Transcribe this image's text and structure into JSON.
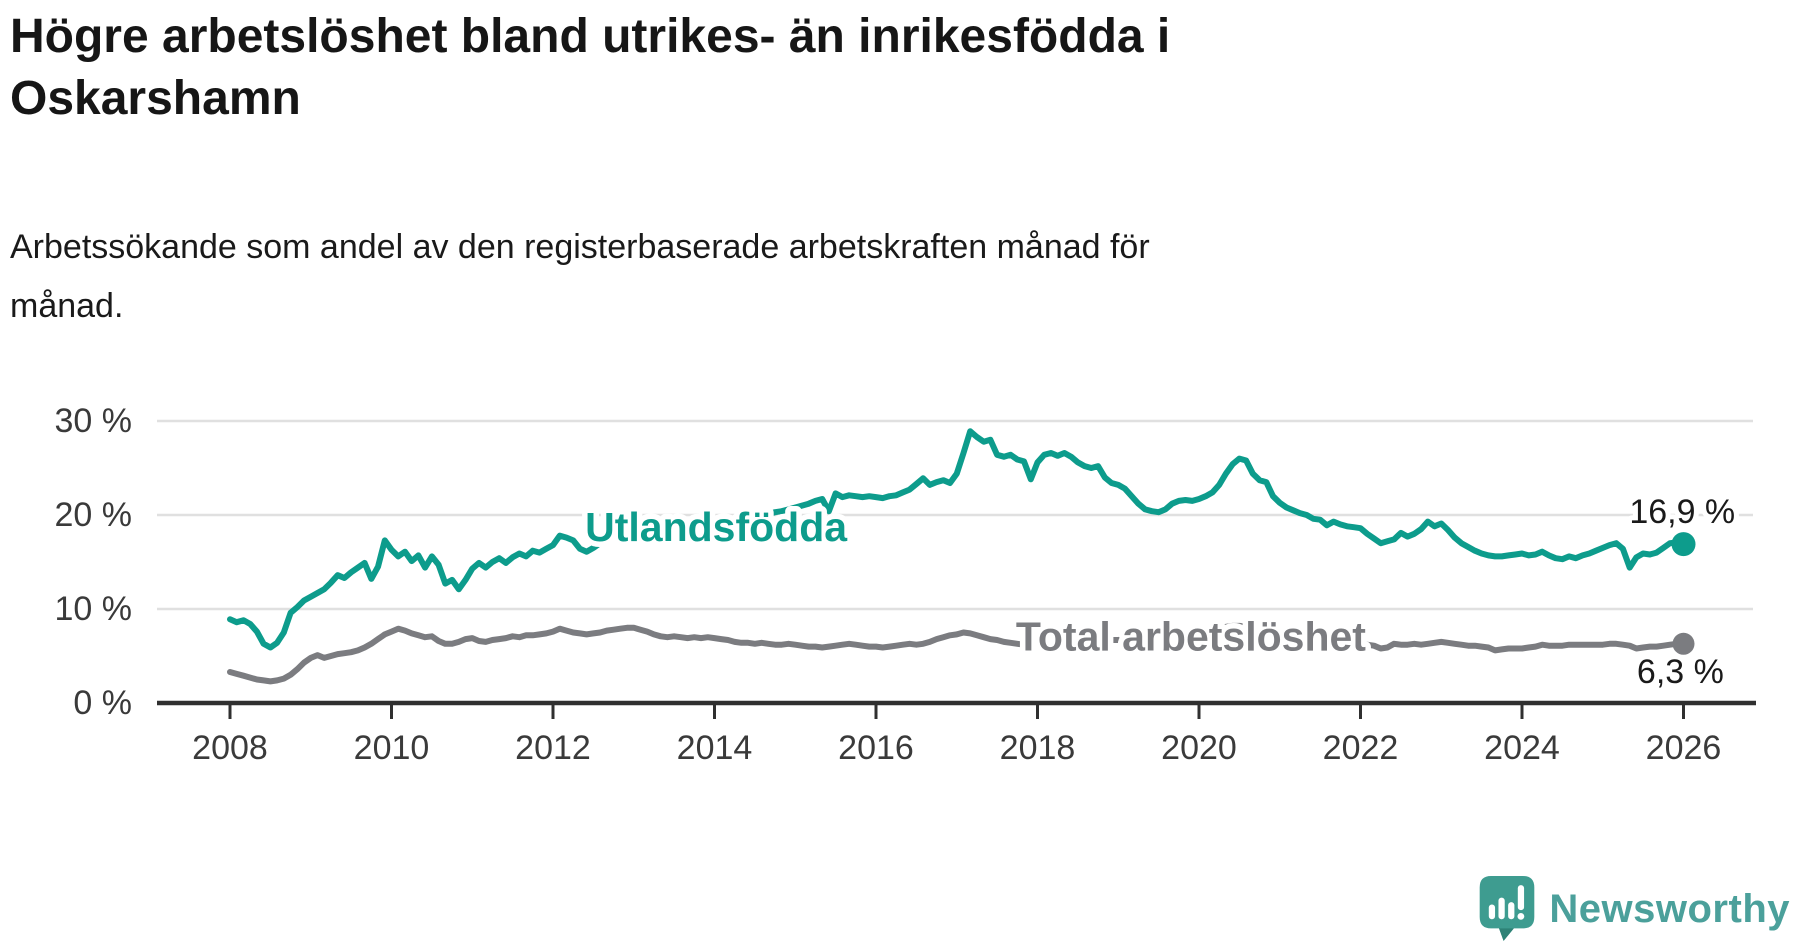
{
  "header": {
    "title_lines": [
      "Högre arbetslöshet bland utrikes- än inrikesfödda i",
      "Oskarshamn"
    ],
    "subtitle_lines": [
      "Arbetssökande som andel av den registerbaserade arbetskraften månad för",
      "månad."
    ]
  },
  "footer": {
    "brand": "Newsworthy",
    "brand_color": "#4ba09b",
    "logo_icon_color": "#3e9c90",
    "logo_icon_shadow": "#2e8276"
  },
  "chart_data": {
    "type": "line",
    "title": "Högre arbetslöshet bland utrikes- än inrikesfödda i Oskarshamn",
    "subtitle": "Arbetssökande som andel av den registerbaserade arbetskraften månad för månad.",
    "grid": "horizontal-only",
    "background": "#ffffff",
    "gridline_color": "#e0e0e0",
    "axis_color": "#303030",
    "axis_label_color": "#3a3a3a",
    "x_axis": {
      "start_year": 2008,
      "points_per_year": 12,
      "tick_years": [
        2008,
        2010,
        2012,
        2014,
        2016,
        2018,
        2020,
        2022,
        2024,
        2026
      ],
      "tick_labels": [
        "2008",
        "2010",
        "2012",
        "2014",
        "2016",
        "2018",
        "2020",
        "2022",
        "2024",
        "2026"
      ]
    },
    "y_axis": {
      "ticks": [
        0,
        10,
        20,
        30
      ],
      "tick_labels": [
        "0 %",
        "10 %",
        "20 %",
        "30 %"
      ],
      "range": [
        0,
        32
      ]
    },
    "series": [
      {
        "id": "utlandsfodda",
        "name": "Utlandsfödda",
        "color": "#0d9c8c",
        "label": {
          "text": "Utlandsfödda",
          "x_year": 2014.02,
          "y_pct": 18.7
        },
        "end_annotation": {
          "text": "16,9 %",
          "x_year": 2026.64,
          "y_pct": 20.3
        },
        "last_value": 16.9,
        "values": [
          8.9,
          8.6,
          8.8,
          8.4,
          7.6,
          6.3,
          5.9,
          6.4,
          7.5,
          9.6,
          10.2,
          10.9,
          11.3,
          11.7,
          12.1,
          12.8,
          13.6,
          13.3,
          13.9,
          14.4,
          14.9,
          13.2,
          14.5,
          17.3,
          16.3,
          15.6,
          16.1,
          15.1,
          15.7,
          14.4,
          15.6,
          14.7,
          12.7,
          13.1,
          12.1,
          13.1,
          14.3,
          14.9,
          14.4,
          15.0,
          15.4,
          14.9,
          15.5,
          15.9,
          15.6,
          16.2,
          16.0,
          16.4,
          16.8,
          17.8,
          17.6,
          17.3,
          16.4,
          16.1,
          16.5,
          17.0,
          17.3,
          17.6,
          17.8,
          18.0,
          17.9,
          18.1,
          18.3,
          18.4,
          18.5,
          18.4,
          18.6,
          18.8,
          18.7,
          18.9,
          19.0,
          19.2,
          19.1,
          19.3,
          19.4,
          19.5,
          19.7,
          19.6,
          19.8,
          20.0,
          20.1,
          20.3,
          20.4,
          20.6,
          20.8,
          21.0,
          21.2,
          21.5,
          21.7,
          20.4,
          22.3,
          21.9,
          22.1,
          22.0,
          21.9,
          22.0,
          21.9,
          21.8,
          22.0,
          22.1,
          22.4,
          22.7,
          23.3,
          23.9,
          23.2,
          23.5,
          23.7,
          23.4,
          24.4,
          26.6,
          28.9,
          28.3,
          27.8,
          28.0,
          26.4,
          26.2,
          26.4,
          25.9,
          25.7,
          23.8,
          25.6,
          26.4,
          26.6,
          26.3,
          26.6,
          26.2,
          25.6,
          25.2,
          25.0,
          25.2,
          24.0,
          23.4,
          23.2,
          22.8,
          22.0,
          21.2,
          20.6,
          20.4,
          20.3,
          20.6,
          21.2,
          21.5,
          21.6,
          21.5,
          21.7,
          22.0,
          22.4,
          23.2,
          24.4,
          25.4,
          26.0,
          25.8,
          24.4,
          23.7,
          23.5,
          22.0,
          21.3,
          20.8,
          20.5,
          20.2,
          20.0,
          19.6,
          19.5,
          18.9,
          19.3,
          19.0,
          18.8,
          18.7,
          18.6,
          18.0,
          17.5,
          17.0,
          17.2,
          17.4,
          18.1,
          17.7,
          18.0,
          18.5,
          19.3,
          18.8,
          19.1,
          18.4,
          17.6,
          17.0,
          16.6,
          16.2,
          15.9,
          15.7,
          15.6,
          15.6,
          15.7,
          15.8,
          15.9,
          15.7,
          15.8,
          16.1,
          15.7,
          15.4,
          15.3,
          15.6,
          15.4,
          15.7,
          15.9,
          16.2,
          16.5,
          16.8,
          17.0,
          16.4,
          14.4,
          15.5,
          15.9,
          15.8,
          16.0,
          16.5,
          17.0,
          17.1,
          16.9
        ]
      },
      {
        "id": "total",
        "name": "Total arbetslöshet",
        "color": "#7b7c80",
        "label": {
          "text": "Total arbetslöshet",
          "x_year": 2019.9,
          "y_pct": 7.1
        },
        "end_annotation": {
          "text": "6,3 %",
          "x_year": 2026.5,
          "y_pct": 3.3
        },
        "last_value": 6.3,
        "values": [
          3.3,
          3.1,
          2.9,
          2.7,
          2.5,
          2.4,
          2.3,
          2.4,
          2.6,
          3.0,
          3.6,
          4.3,
          4.8,
          5.1,
          4.8,
          5.0,
          5.2,
          5.3,
          5.4,
          5.6,
          5.9,
          6.3,
          6.8,
          7.3,
          7.6,
          7.9,
          7.7,
          7.4,
          7.2,
          7.0,
          7.1,
          6.6,
          6.3,
          6.3,
          6.5,
          6.8,
          6.9,
          6.6,
          6.5,
          6.7,
          6.8,
          6.9,
          7.1,
          7.0,
          7.2,
          7.2,
          7.3,
          7.4,
          7.6,
          7.9,
          7.7,
          7.5,
          7.4,
          7.3,
          7.4,
          7.5,
          7.7,
          7.8,
          7.9,
          8.0,
          8.0,
          7.8,
          7.6,
          7.3,
          7.1,
          7.0,
          7.1,
          7.0,
          6.9,
          7.0,
          6.9,
          7.0,
          6.9,
          6.8,
          6.7,
          6.5,
          6.4,
          6.4,
          6.3,
          6.4,
          6.3,
          6.2,
          6.2,
          6.3,
          6.2,
          6.1,
          6.0,
          6.0,
          5.9,
          6.0,
          6.1,
          6.2,
          6.3,
          6.2,
          6.1,
          6.0,
          6.0,
          5.9,
          6.0,
          6.1,
          6.2,
          6.3,
          6.2,
          6.3,
          6.5,
          6.8,
          7.0,
          7.2,
          7.3,
          7.5,
          7.4,
          7.2,
          7.0,
          6.8,
          6.7,
          6.5,
          6.4,
          6.3,
          6.2,
          6.3,
          6.3,
          6.4,
          6.3,
          6.2,
          6.3,
          6.4,
          6.5,
          6.4,
          6.5,
          6.6,
          6.6,
          6.7,
          6.7,
          6.8,
          6.8,
          6.9,
          6.9,
          7.0,
          7.0,
          7.1,
          7.1,
          7.2,
          7.2,
          7.3,
          7.3,
          7.4,
          7.6,
          7.9,
          8.1,
          8.2,
          8.2,
          8.1,
          8.0,
          7.9,
          7.8,
          7.7,
          7.6,
          7.5,
          7.4,
          7.2,
          7.1,
          7.0,
          6.9,
          6.8,
          6.7,
          6.6,
          6.5,
          6.4,
          6.3,
          6.2,
          6.1,
          5.8,
          5.9,
          6.3,
          6.2,
          6.2,
          6.3,
          6.2,
          6.3,
          6.4,
          6.5,
          6.4,
          6.3,
          6.2,
          6.1,
          6.1,
          6.0,
          5.9,
          5.6,
          5.7,
          5.8,
          5.8,
          5.8,
          5.9,
          6.0,
          6.2,
          6.1,
          6.1,
          6.1,
          6.2,
          6.2,
          6.2,
          6.2,
          6.2,
          6.2,
          6.3,
          6.3,
          6.2,
          6.1,
          5.8,
          5.9,
          6.0,
          6.0,
          6.1,
          6.2,
          6.3,
          6.3
        ]
      }
    ]
  }
}
